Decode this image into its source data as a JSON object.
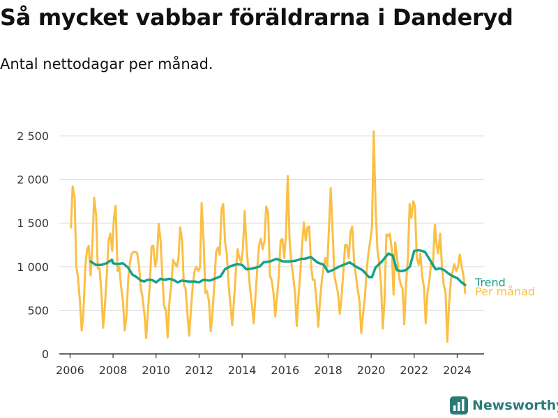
{
  "title": "Så mycket vabbar föräldrarna i Danderyd",
  "subtitle": "Antal nettodagar per månad.",
  "brand": "Newsworthy",
  "colors": {
    "trend": "#16a18a",
    "monthly": "#fbbf45",
    "grid": "#dddddd",
    "axis": "#333333",
    "brand": "#2a7b78"
  },
  "chart_data": {
    "type": "line",
    "title": "Så mycket vabbar föräldrarna i Danderyd",
    "subtitle": "Antal nettodagar per månad.",
    "xlabel": "",
    "ylabel": "",
    "xlim": [
      2005.5,
      2025.25
    ],
    "ylim": [
      0,
      2700
    ],
    "grid": true,
    "legend": "right end of lines",
    "x_ticks": [
      2006,
      2008,
      2010,
      2012,
      2014,
      2016,
      2018,
      2020,
      2022,
      2024
    ],
    "x_tick_labels": [
      "2006",
      "2008",
      "2010",
      "2012",
      "2014",
      "2016",
      "2018",
      "2020",
      "2022",
      "2024"
    ],
    "y_ticks": [
      0,
      500,
      1000,
      1500,
      2000,
      2500
    ],
    "y_tick_labels": [
      "0",
      "500",
      "1 000",
      "1 500",
      "2 000",
      "2 500"
    ],
    "series": [
      {
        "name": "Per månad",
        "color": "#fbbf45",
        "x": [
          2006.04,
          2006.12,
          2006.21,
          2006.29,
          2006.37,
          2006.46,
          2006.54,
          2006.62,
          2006.71,
          2006.79,
          2006.87,
          2006.96,
          2007.04,
          2007.12,
          2007.21,
          2007.29,
          2007.37,
          2007.46,
          2007.54,
          2007.62,
          2007.71,
          2007.79,
          2007.87,
          2007.96,
          2008.04,
          2008.12,
          2008.21,
          2008.29,
          2008.37,
          2008.46,
          2008.54,
          2008.62,
          2008.71,
          2008.79,
          2008.87,
          2008.96,
          2009.04,
          2009.12,
          2009.21,
          2009.29,
          2009.37,
          2009.46,
          2009.54,
          2009.62,
          2009.71,
          2009.79,
          2009.87,
          2009.96,
          2010.04,
          2010.12,
          2010.21,
          2010.29,
          2010.37,
          2010.46,
          2010.54,
          2010.62,
          2010.71,
          2010.79,
          2010.87,
          2010.96,
          2011.04,
          2011.12,
          2011.21,
          2011.29,
          2011.37,
          2011.46,
          2011.54,
          2011.62,
          2011.71,
          2011.79,
          2011.87,
          2011.96,
          2012.04,
          2012.12,
          2012.21,
          2012.29,
          2012.37,
          2012.46,
          2012.54,
          2012.62,
          2012.71,
          2012.79,
          2012.87,
          2012.96,
          2013.04,
          2013.12,
          2013.21,
          2013.29,
          2013.37,
          2013.46,
          2013.54,
          2013.62,
          2013.71,
          2013.79,
          2013.87,
          2013.96,
          2014.04,
          2014.12,
          2014.21,
          2014.29,
          2014.37,
          2014.46,
          2014.54,
          2014.62,
          2014.71,
          2014.79,
          2014.87,
          2014.96,
          2015.04,
          2015.12,
          2015.21,
          2015.29,
          2015.37,
          2015.46,
          2015.54,
          2015.62,
          2015.71,
          2015.79,
          2015.87,
          2015.96,
          2016.04,
          2016.12,
          2016.21,
          2016.29,
          2016.37,
          2016.46,
          2016.54,
          2016.62,
          2016.71,
          2016.79,
          2016.87,
          2016.96,
          2017.04,
          2017.12,
          2017.21,
          2017.29,
          2017.37,
          2017.46,
          2017.54,
          2017.62,
          2017.71,
          2017.79,
          2017.87,
          2017.96,
          2018.04,
          2018.12,
          2018.21,
          2018.29,
          2018.37,
          2018.46,
          2018.54,
          2018.62,
          2018.71,
          2018.79,
          2018.87,
          2018.96,
          2019.04,
          2019.12,
          2019.21,
          2019.29,
          2019.37,
          2019.46,
          2019.54,
          2019.62,
          2019.71,
          2019.79,
          2019.87,
          2019.96,
          2020.04,
          2020.12,
          2020.21,
          2020.29,
          2020.37,
          2020.46,
          2020.54,
          2020.62,
          2020.71,
          2020.79,
          2020.87,
          2020.96,
          2021.04,
          2021.12,
          2021.21,
          2021.29,
          2021.37,
          2021.46,
          2021.54,
          2021.62,
          2021.71,
          2021.79,
          2021.87,
          2021.96,
          2022.04,
          2022.12,
          2022.21,
          2022.29,
          2022.37,
          2022.46,
          2022.54,
          2022.62,
          2022.71,
          2022.79,
          2022.87,
          2022.96,
          2023.04,
          2023.12,
          2023.21,
          2023.29,
          2023.37,
          2023.46,
          2023.54,
          2023.62,
          2023.71,
          2023.79,
          2023.87,
          2023.96,
          2024.04,
          2024.12,
          2024.21,
          2024.29,
          2024.37
        ],
        "values": [
          1450,
          1920,
          1800,
          1000,
          880,
          600,
          270,
          450,
          1000,
          1200,
          1240,
          900,
          1270,
          1790,
          1600,
          980,
          980,
          700,
          300,
          550,
          900,
          1300,
          1380,
          1180,
          1560,
          1700,
          950,
          1000,
          780,
          600,
          270,
          420,
          880,
          1050,
          1150,
          1170,
          1170,
          1160,
          1000,
          750,
          650,
          450,
          180,
          480,
          800,
          1230,
          1240,
          1000,
          1100,
          1490,
          1300,
          900,
          550,
          500,
          190,
          600,
          800,
          1080,
          1040,
          1000,
          1090,
          1450,
          1300,
          800,
          750,
          450,
          210,
          500,
          800,
          950,
          1000,
          950,
          990,
          1730,
          1300,
          700,
          720,
          600,
          260,
          450,
          800,
          1170,
          1220,
          1140,
          1650,
          1720,
          1280,
          1150,
          800,
          550,
          330,
          600,
          950,
          1200,
          1100,
          1050,
          1210,
          1640,
          1200,
          980,
          750,
          550,
          350,
          650,
          1000,
          1250,
          1320,
          1200,
          1300,
          1690,
          1620,
          900,
          850,
          700,
          430,
          650,
          900,
          1300,
          1320,
          1100,
          1370,
          2040,
          1300,
          1050,
          900,
          700,
          320,
          650,
          950,
          1250,
          1510,
          1300,
          1450,
          1460,
          1000,
          850,
          850,
          600,
          310,
          600,
          850,
          1000,
          1100,
          1000,
          1460,
          1900,
          1400,
          900,
          800,
          700,
          460,
          650,
          950,
          1250,
          1250,
          1100,
          1400,
          1460,
          1050,
          900,
          750,
          600,
          240,
          450,
          650,
          950,
          1150,
          1300,
          1450,
          2550,
          1650,
          1200,
          1050,
          800,
          290,
          600,
          1370,
          1350,
          1380,
          1200,
          680,
          1280,
          1100,
          900,
          800,
          750,
          340,
          800,
          1100,
          1720,
          1560,
          1750,
          1690,
          1100,
          1020,
          1150,
          900,
          750,
          350,
          700,
          850,
          1050,
          1000,
          1480,
          1250,
          1150,
          1380,
          1000,
          800,
          700,
          140,
          550,
          850,
          950,
          1030,
          950,
          1000,
          1140,
          1000,
          900,
          700
        ]
      },
      {
        "name": "Trend",
        "color": "#16a18a",
        "x": [
          2006.96,
          2007.2,
          2007.45,
          2007.7,
          2007.95,
          2008.0,
          2008.2,
          2008.45,
          2008.7,
          2008.9,
          2009.1,
          2009.3,
          2009.45,
          2009.6,
          2009.8,
          2010.0,
          2010.2,
          2010.4,
          2010.6,
          2010.8,
          2011.0,
          2011.2,
          2011.5,
          2011.8,
          2012.0,
          2012.2,
          2012.5,
          2012.8,
          2013.0,
          2013.2,
          2013.5,
          2013.8,
          2014.0,
          2014.2,
          2014.5,
          2014.8,
          2015.0,
          2015.3,
          2015.6,
          2015.9,
          2016.2,
          2016.5,
          2016.75,
          2016.9,
          2017.2,
          2017.5,
          2017.8,
          2018.0,
          2018.2,
          2018.5,
          2018.8,
          2019.0,
          2019.3,
          2019.6,
          2019.9,
          2020.04,
          2020.2,
          2020.5,
          2020.8,
          2021.0,
          2021.2,
          2021.4,
          2021.6,
          2021.8,
          2022.0,
          2022.2,
          2022.5,
          2022.8,
          2023.0,
          2023.2,
          2023.4,
          2023.6,
          2023.8,
          2024.0,
          2024.2,
          2024.37
        ],
        "values": [
          1060,
          1020,
          1020,
          1040,
          1080,
          1040,
          1030,
          1040,
          990,
          910,
          880,
          840,
          830,
          850,
          850,
          820,
          860,
          850,
          860,
          850,
          820,
          840,
          830,
          830,
          820,
          850,
          840,
          870,
          890,
          970,
          1010,
          1030,
          1020,
          970,
          980,
          1000,
          1050,
          1060,
          1090,
          1060,
          1060,
          1070,
          1090,
          1090,
          1110,
          1050,
          1020,
          940,
          960,
          1000,
          1030,
          1050,
          1000,
          960,
          880,
          880,
          990,
          1060,
          1150,
          1130,
          960,
          950,
          960,
          1000,
          1180,
          1190,
          1170,
          1050,
          970,
          980,
          960,
          920,
          890,
          870,
          820,
          790
        ]
      }
    ]
  }
}
